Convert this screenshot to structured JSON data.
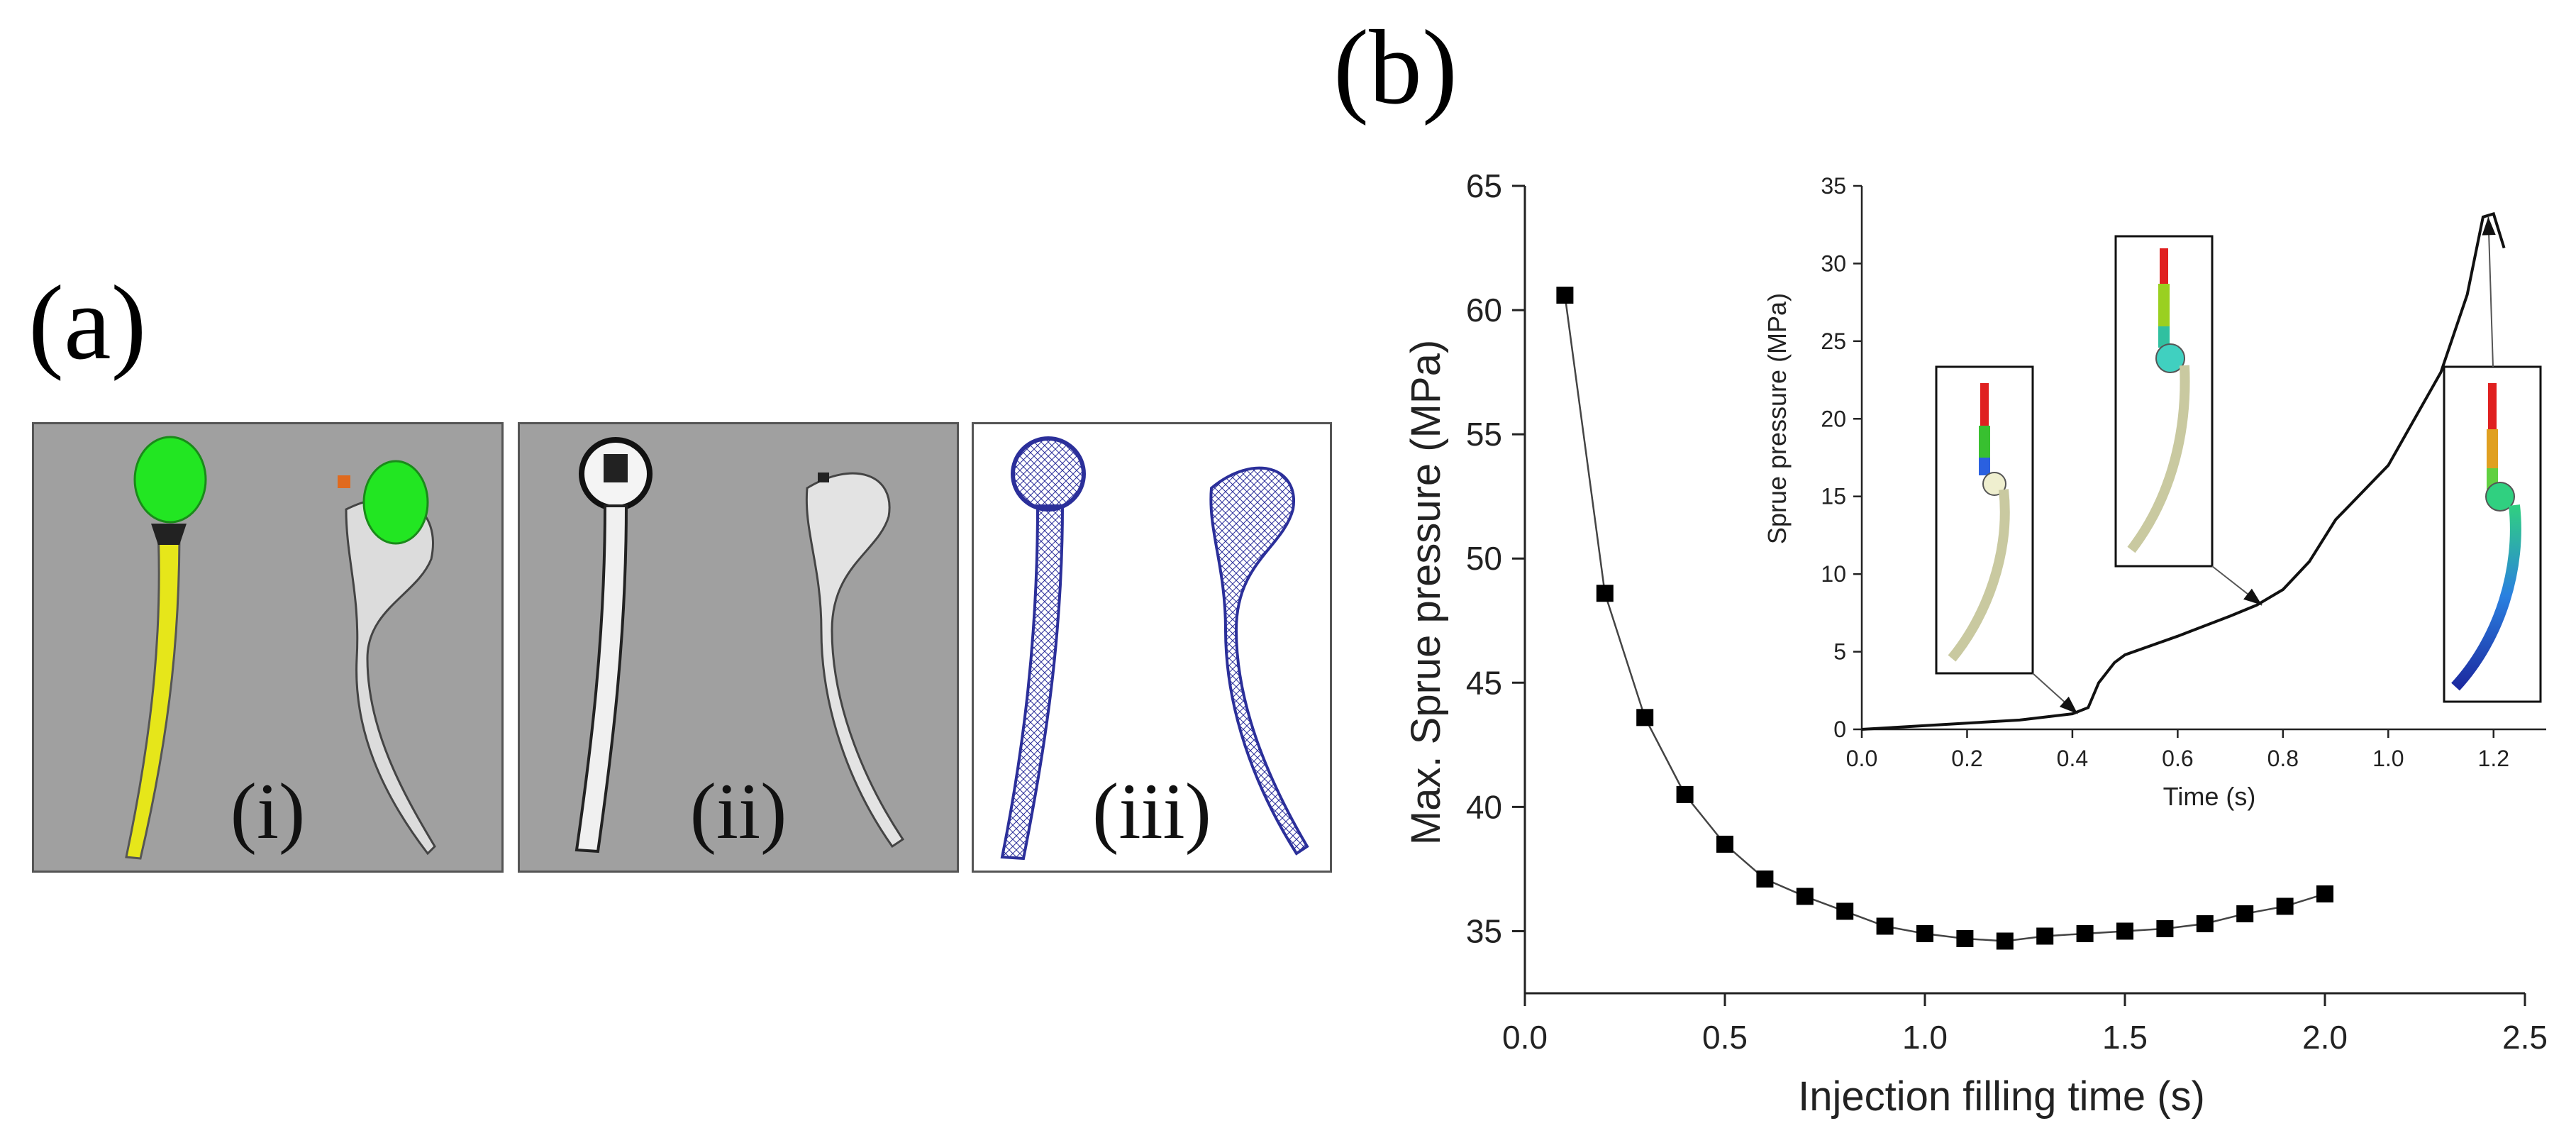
{
  "figure": {
    "panel_a_label": "(a)",
    "panel_b_label": "(b)",
    "subpanels": [
      {
        "label": "(i)",
        "description": "CAD model of femoral stem"
      },
      {
        "label": "(ii)",
        "description": "Hollow mould model"
      },
      {
        "label": "(iii)",
        "description": "Meshed model"
      }
    ]
  },
  "colors": {
    "green": "#22e622",
    "yellow": "#e6e61a",
    "orange": "#e06a1e",
    "mesh_blue": "#2b2f9a",
    "panel_grey": "#a0a0a0"
  },
  "chart_data": [
    {
      "type": "line",
      "markers": "square",
      "x": [
        0.1,
        0.2,
        0.3,
        0.4,
        0.5,
        0.6,
        0.7,
        0.8,
        0.9,
        1.0,
        1.1,
        1.2,
        1.3,
        1.4,
        1.5,
        1.6,
        1.7,
        1.8,
        1.9,
        2.0
      ],
      "y": [
        60.6,
        48.6,
        43.6,
        40.5,
        38.5,
        37.1,
        36.4,
        35.8,
        35.2,
        34.9,
        34.7,
        34.6,
        34.8,
        34.9,
        35.0,
        35.1,
        35.3,
        35.7,
        36.0,
        36.5
      ],
      "title": "",
      "xlabel": "Injection filling time (s)",
      "ylabel": "Max. Sprue pressure (MPa)",
      "xlim": [
        0.0,
        2.5
      ],
      "ylim": [
        32.5,
        65
      ],
      "xticks": [
        "0.0",
        "0.5",
        "1.0",
        "1.5",
        "2.0",
        "2.5"
      ],
      "yticks": [
        "35",
        "40",
        "45",
        "50",
        "55",
        "60",
        "65"
      ]
    },
    {
      "type": "line",
      "role": "inset",
      "x": [
        0.0,
        0.1,
        0.2,
        0.3,
        0.4,
        0.43,
        0.45,
        0.48,
        0.5,
        0.6,
        0.7,
        0.75,
        0.8,
        0.85,
        0.9,
        1.0,
        1.1,
        1.15,
        1.18,
        1.2,
        1.22
      ],
      "y": [
        0.0,
        0.2,
        0.4,
        0.6,
        1.0,
        1.4,
        3.0,
        4.3,
        4.8,
        6.0,
        7.3,
        8.0,
        9.0,
        10.8,
        13.5,
        17.0,
        23.0,
        28.0,
        33.0,
        33.2,
        31.0
      ],
      "xlabel": "Time (s)",
      "ylabel": "Sprue pressure (MPa)",
      "xlim": [
        0.0,
        1.3
      ],
      "ylim": [
        0,
        35
      ],
      "xticks": [
        "0.0",
        "0.2",
        "0.4",
        "0.6",
        "0.8",
        "1.0",
        "1.2"
      ],
      "yticks": [
        "0",
        "5",
        "10",
        "15",
        "20",
        "25",
        "30",
        "35"
      ],
      "annotations": [
        {
          "x": 0.41,
          "y": 1.0,
          "description": "Filling snapshot at ~0.4 s"
        },
        {
          "x": 0.76,
          "y": 8.0,
          "description": "Filling snapshot at ~0.75 s"
        },
        {
          "x": 1.19,
          "y": 33.0,
          "description": "Filling snapshot at ~1.2 s"
        }
      ]
    }
  ]
}
